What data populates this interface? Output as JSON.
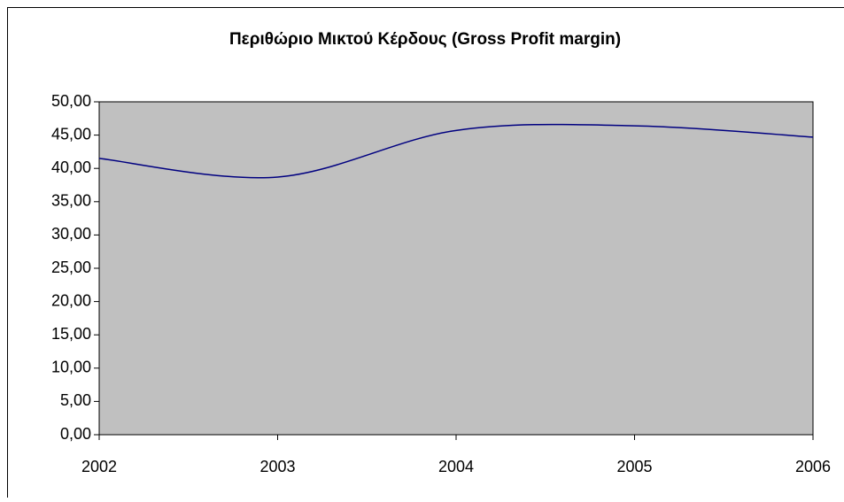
{
  "chart_data": {
    "type": "line",
    "title": "Περιθώριο Μικτού Κέρδους (Gross Profit margin)",
    "x": [
      2002,
      2003,
      2004,
      2005,
      2006
    ],
    "series": [
      {
        "name": "Gross Profit margin",
        "color": "#000080",
        "values": [
          41.5,
          38.7,
          45.7,
          46.4,
          44.7
        ]
      }
    ],
    "xlim": [
      2002,
      2006
    ],
    "xticks": [
      2002,
      2003,
      2004,
      2005,
      2006
    ],
    "ylim": [
      0,
      50
    ],
    "yticks": [
      {
        "value": 0,
        "label": "0,00"
      },
      {
        "value": 5,
        "label": "5,00"
      },
      {
        "value": 10,
        "label": "10,00"
      },
      {
        "value": 15,
        "label": "15,00"
      },
      {
        "value": 20,
        "label": "20,00"
      },
      {
        "value": 25,
        "label": "25,00"
      },
      {
        "value": 30,
        "label": "30,00"
      },
      {
        "value": 35,
        "label": "35,00"
      },
      {
        "value": 40,
        "label": "40,00"
      },
      {
        "value": 45,
        "label": "45,00"
      },
      {
        "value": 50,
        "label": "50,00"
      }
    ],
    "plot_background": "#c0c0c0"
  }
}
